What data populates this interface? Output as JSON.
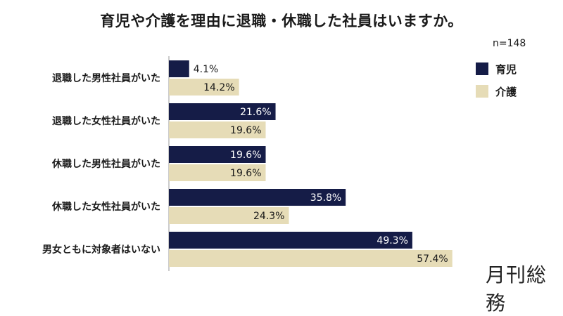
{
  "title": "育児や介護を理由に退職・休職した社員はいますか。",
  "sample_size": "n=148",
  "brand": "月刊総務",
  "colors": {
    "育児": "#151c47",
    "介護": "#e6dcb7"
  },
  "chart_data": {
    "type": "bar",
    "orientation": "horizontal",
    "categories": [
      "退職した男性社員がいた",
      "退職した女性社員がいた",
      "休職した男性社員がいた",
      "休職した女性社員がいた",
      "男女ともに対象者はいない"
    ],
    "series": [
      {
        "name": "育児",
        "values": [
          4.1,
          21.6,
          19.6,
          35.8,
          49.3
        ]
      },
      {
        "name": "介護",
        "values": [
          14.2,
          19.6,
          19.6,
          24.3,
          57.4
        ]
      }
    ],
    "value_suffix": "%",
    "xlim": [
      0,
      62
    ],
    "grid": false,
    "legend": "right"
  }
}
